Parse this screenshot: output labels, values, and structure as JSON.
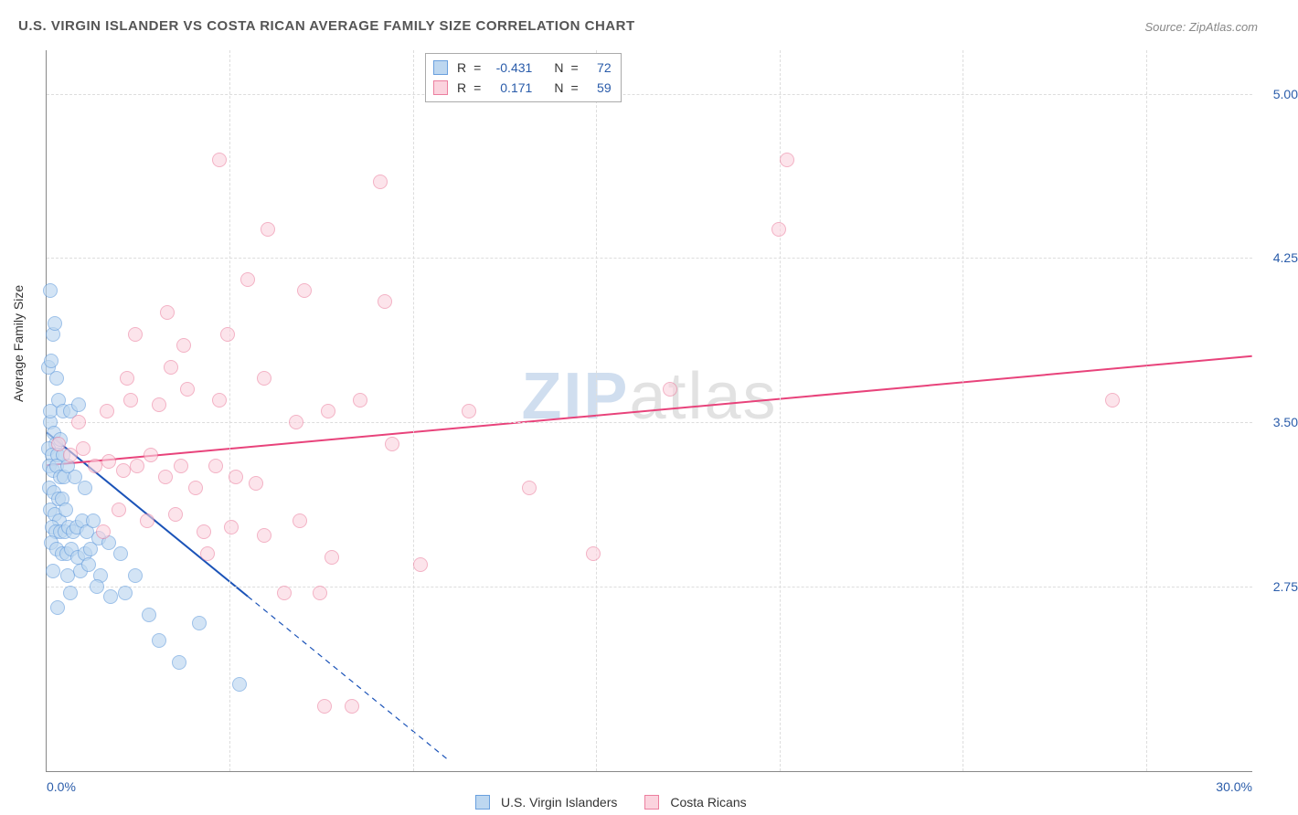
{
  "title": "U.S. VIRGIN ISLANDER VS COSTA RICAN AVERAGE FAMILY SIZE CORRELATION CHART",
  "source": "Source: ZipAtlas.com",
  "watermark": {
    "zip": "ZIP",
    "atlas": "atlas"
  },
  "ylabel": "Average Family Size",
  "chart": {
    "type": "scatter",
    "x_domain": [
      0,
      30
    ],
    "y_domain": [
      1.9,
      5.2
    ],
    "y_ticks": [
      2.75,
      3.5,
      4.25,
      5.0
    ],
    "y_tick_labels": [
      "2.75",
      "3.50",
      "4.25",
      "5.00"
    ],
    "x_tick_min_label": "0.0%",
    "x_tick_max_label": "30.0%",
    "x_gridline_positions_pct": [
      15.2,
      30.4,
      45.6,
      60.8,
      76.0,
      91.2
    ],
    "background_color": "#ffffff",
    "grid_color": "#dddddd",
    "axis_color": "#888888",
    "tick_label_color": "#2a5caa",
    "marker_radius": 8,
    "marker_stroke_width": 1.2,
    "series": [
      {
        "name": "U.S. Virgin Islanders",
        "fill": "#bdd7f0",
        "stroke": "#6aa0de",
        "fill_opacity": 0.65,
        "r_value": "-0.431",
        "n_value": "72",
        "trend": {
          "x1": 0,
          "y1": 3.45,
          "x2": 5.0,
          "y2": 2.7,
          "x2_dash": 10.0,
          "y2_dash": 1.95,
          "color": "#1b53b8",
          "width": 2
        },
        "points": [
          [
            0.1,
            4.1
          ],
          [
            0.15,
            3.9
          ],
          [
            0.2,
            3.95
          ],
          [
            0.05,
            3.75
          ],
          [
            0.12,
            3.78
          ],
          [
            0.25,
            3.7
          ],
          [
            0.3,
            3.6
          ],
          [
            0.1,
            3.5
          ],
          [
            0.08,
            3.55
          ],
          [
            0.18,
            3.45
          ],
          [
            0.22,
            3.4
          ],
          [
            0.35,
            3.42
          ],
          [
            0.05,
            3.38
          ],
          [
            0.14,
            3.35
          ],
          [
            0.28,
            3.35
          ],
          [
            0.4,
            3.35
          ],
          [
            0.06,
            3.3
          ],
          [
            0.16,
            3.28
          ],
          [
            0.24,
            3.3
          ],
          [
            0.33,
            3.25
          ],
          [
            0.44,
            3.25
          ],
          [
            0.07,
            3.2
          ],
          [
            0.19,
            3.18
          ],
          [
            0.29,
            3.15
          ],
          [
            0.38,
            3.15
          ],
          [
            0.09,
            3.1
          ],
          [
            0.21,
            3.08
          ],
          [
            0.31,
            3.05
          ],
          [
            0.47,
            3.1
          ],
          [
            0.13,
            3.02
          ],
          [
            0.23,
            3.0
          ],
          [
            0.34,
            3.0
          ],
          [
            0.45,
            3.0
          ],
          [
            0.55,
            3.02
          ],
          [
            0.65,
            3.0
          ],
          [
            0.75,
            3.02
          ],
          [
            0.88,
            3.05
          ],
          [
            1.0,
            3.0
          ],
          [
            1.15,
            3.05
          ],
          [
            0.11,
            2.95
          ],
          [
            0.26,
            2.92
          ],
          [
            0.39,
            2.9
          ],
          [
            0.5,
            2.9
          ],
          [
            0.62,
            2.92
          ],
          [
            0.78,
            2.88
          ],
          [
            0.95,
            2.9
          ],
          [
            1.1,
            2.92
          ],
          [
            1.3,
            2.97
          ],
          [
            0.17,
            2.82
          ],
          [
            0.52,
            2.8
          ],
          [
            0.85,
            2.82
          ],
          [
            1.05,
            2.85
          ],
          [
            1.35,
            2.8
          ],
          [
            0.6,
            2.72
          ],
          [
            0.27,
            2.65
          ],
          [
            1.25,
            2.75
          ],
          [
            1.6,
            2.7
          ],
          [
            1.95,
            2.72
          ],
          [
            2.2,
            2.8
          ],
          [
            2.55,
            2.62
          ],
          [
            0.42,
            3.55
          ],
          [
            0.6,
            3.55
          ],
          [
            0.8,
            3.58
          ],
          [
            1.55,
            2.95
          ],
          [
            1.85,
            2.9
          ],
          [
            0.95,
            3.2
          ],
          [
            0.7,
            3.25
          ],
          [
            0.52,
            3.3
          ],
          [
            4.8,
            2.3
          ],
          [
            2.8,
            2.5
          ],
          [
            3.3,
            2.4
          ],
          [
            3.8,
            2.58
          ]
        ]
      },
      {
        "name": "Costa Ricans",
        "fill": "#fbd3de",
        "stroke": "#ec7f9f",
        "fill_opacity": 0.6,
        "r_value": "0.171",
        "n_value": "59",
        "trend": {
          "x1": 0,
          "y1": 3.3,
          "x2": 30,
          "y2": 3.8,
          "color": "#e8437b",
          "width": 2
        },
        "points": [
          [
            0.3,
            3.4
          ],
          [
            0.6,
            3.35
          ],
          [
            0.9,
            3.38
          ],
          [
            1.2,
            3.3
          ],
          [
            1.55,
            3.32
          ],
          [
            1.9,
            3.28
          ],
          [
            2.25,
            3.3
          ],
          [
            2.6,
            3.35
          ],
          [
            2.95,
            3.25
          ],
          [
            3.35,
            3.3
          ],
          [
            3.7,
            3.2
          ],
          [
            4.2,
            3.3
          ],
          [
            4.7,
            3.25
          ],
          [
            5.2,
            3.22
          ],
          [
            0.8,
            3.5
          ],
          [
            1.5,
            3.55
          ],
          [
            2.1,
            3.6
          ],
          [
            2.8,
            3.58
          ],
          [
            3.5,
            3.65
          ],
          [
            4.3,
            3.6
          ],
          [
            5.4,
            3.7
          ],
          [
            2.2,
            3.9
          ],
          [
            3.4,
            3.85
          ],
          [
            4.5,
            3.9
          ],
          [
            6.2,
            3.5
          ],
          [
            7.0,
            3.55
          ],
          [
            7.8,
            3.6
          ],
          [
            8.6,
            3.4
          ],
          [
            10.5,
            3.55
          ],
          [
            12.0,
            3.2
          ],
          [
            13.6,
            2.9
          ],
          [
            15.5,
            3.65
          ],
          [
            18.2,
            4.38
          ],
          [
            18.4,
            4.7
          ],
          [
            26.5,
            3.6
          ],
          [
            1.8,
            3.1
          ],
          [
            2.5,
            3.05
          ],
          [
            3.2,
            3.08
          ],
          [
            3.9,
            3.0
          ],
          [
            4.6,
            3.02
          ],
          [
            5.4,
            2.98
          ],
          [
            6.3,
            3.05
          ],
          [
            7.1,
            2.88
          ],
          [
            5.9,
            2.72
          ],
          [
            6.8,
            2.72
          ],
          [
            4.0,
            2.9
          ],
          [
            4.3,
            4.7
          ],
          [
            5.5,
            4.38
          ],
          [
            8.3,
            4.6
          ],
          [
            9.3,
            2.85
          ],
          [
            5.0,
            4.15
          ],
          [
            6.4,
            4.1
          ],
          [
            8.4,
            4.05
          ],
          [
            2.0,
            3.7
          ],
          [
            3.1,
            3.75
          ],
          [
            6.9,
            2.2
          ],
          [
            7.6,
            2.2
          ],
          [
            3.0,
            4.0
          ],
          [
            1.4,
            3.0
          ]
        ]
      }
    ]
  },
  "stats_box": {
    "rows": [
      {
        "swatch_fill": "#bdd7f0",
        "swatch_stroke": "#6aa0de",
        "r_label": "R",
        "eq": "=",
        "r_value": "-0.431",
        "n_label": "N",
        "n_value": "72"
      },
      {
        "swatch_fill": "#fbd3de",
        "swatch_stroke": "#ec7f9f",
        "r_label": "R",
        "eq": "=",
        "r_value": "0.171",
        "n_label": "N",
        "n_value": "59"
      }
    ]
  },
  "bottom_legend": {
    "items": [
      {
        "swatch_fill": "#bdd7f0",
        "swatch_stroke": "#6aa0de",
        "label": "U.S. Virgin Islanders"
      },
      {
        "swatch_fill": "#fbd3de",
        "swatch_stroke": "#ec7f9f",
        "label": "Costa Ricans"
      }
    ]
  }
}
